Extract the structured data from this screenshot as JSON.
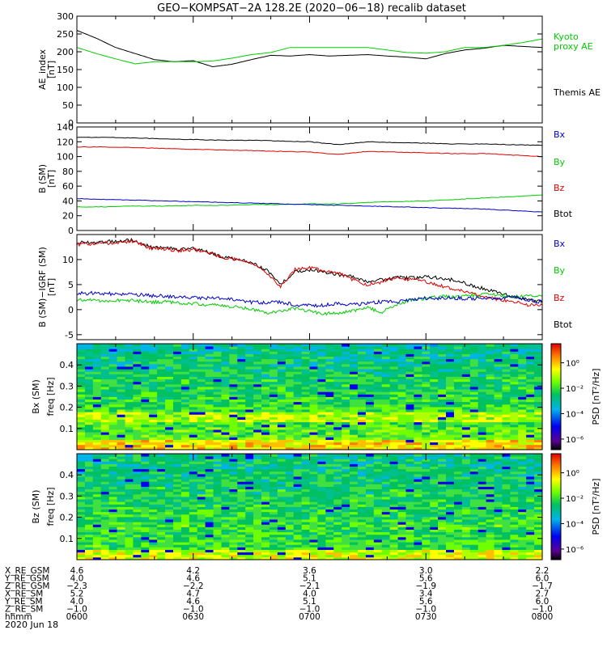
{
  "title": "GEO−KOMPSAT−2A 128.2E (2020−06−18) recalib dataset",
  "x_ticks_time": [
    "0600",
    "0630",
    "0700",
    "0730",
    "0800"
  ],
  "date_label": "2020 Jun 18",
  "colors": {
    "black": "#000000",
    "red": "#e00000",
    "green": "#00cc00",
    "blue": "#0000cc"
  },
  "chart_data": [
    {
      "type": "line",
      "panel": "ae",
      "ylabel": "AE_index",
      "yunit": "[nT]",
      "ylim": [
        0,
        300
      ],
      "yticks": [
        "0",
        "50",
        "100",
        "150",
        "200",
        "250",
        "300"
      ],
      "x": [
        "06:00",
        "06:05",
        "06:10",
        "06:15",
        "06:20",
        "06:25",
        "06:30",
        "06:35",
        "06:40",
        "06:45",
        "06:50",
        "06:55",
        "07:00",
        "07:05",
        "07:10",
        "07:15",
        "07:20",
        "07:25",
        "07:30",
        "07:35",
        "07:40",
        "07:45",
        "07:50",
        "07:55",
        "08:00"
      ],
      "series": [
        {
          "name": "Themis AE",
          "color": "#000000",
          "values": [
            260,
            238,
            212,
            195,
            178,
            172,
            175,
            158,
            165,
            178,
            190,
            188,
            192,
            188,
            190,
            192,
            188,
            185,
            180,
            195,
            205,
            210,
            218,
            215,
            212
          ]
        },
        {
          "name": "Kyoto proxy AE",
          "color": "#00cc00",
          "values": [
            212,
            195,
            180,
            166,
            172,
            172,
            172,
            174,
            182,
            192,
            198,
            212,
            212,
            212,
            212,
            212,
            205,
            198,
            196,
            200,
            212,
            212,
            218,
            226,
            236
          ]
        }
      ],
      "legend": [
        "Kyoto",
        "proxy AE",
        "Themis AE"
      ]
    },
    {
      "type": "line",
      "panel": "b_sm",
      "ylabel": "B (SM)",
      "yunit": "[nT]",
      "ylim": [
        0,
        140
      ],
      "yticks": [
        "0",
        "20",
        "40",
        "60",
        "80",
        "100",
        "120",
        "140"
      ],
      "series": [
        {
          "name": "Btot",
          "color": "#000000",
          "values": [
            126,
            126,
            125,
            124,
            123,
            122,
            122,
            121,
            120,
            116,
            120,
            119,
            118,
            117,
            117,
            116,
            115
          ]
        },
        {
          "name": "Bz",
          "color": "#e00000",
          "values": [
            113,
            113,
            112,
            111,
            110,
            109,
            108,
            107,
            106,
            103,
            107,
            106,
            105,
            104,
            104,
            102,
            100
          ]
        },
        {
          "name": "By",
          "color": "#00cc00",
          "values": [
            32,
            32,
            33,
            33,
            34,
            34,
            35,
            35,
            36,
            36,
            38,
            39,
            40,
            42,
            44,
            46,
            48
          ]
        },
        {
          "name": "Bx",
          "color": "#0000cc",
          "values": [
            43,
            42,
            41,
            40,
            39,
            38,
            37,
            36,
            35,
            34,
            33,
            32,
            31,
            30,
            29,
            27,
            25
          ]
        }
      ],
      "legend": [
        "Bx",
        "By",
        "Bz",
        "Btot"
      ]
    },
    {
      "type": "line",
      "panel": "db_sm",
      "ylabel": "B (SM)−IGRF (SM)",
      "yunit": "[nT]",
      "ylim": [
        -6,
        15
      ],
      "yticks": [
        "-5",
        "0",
        "5",
        "10"
      ],
      "series": [
        {
          "name": "Btot",
          "color": "#000000",
          "values": [
            13.3,
            13.5,
            13.6,
            13.8,
            13.9,
            12.5,
            12.3,
            12.0,
            12.2,
            11.5,
            10.5,
            10.0,
            9.5,
            8.0,
            5.0,
            7.5,
            8.0,
            7.5,
            7.0,
            6.5,
            5.5,
            6.0,
            6.5,
            6.3,
            6.5,
            6.4,
            5.8,
            5.0,
            4.2,
            3.4,
            2.6,
            2.0,
            1.6
          ]
        },
        {
          "name": "Bz",
          "color": "#e00000",
          "values": [
            13.0,
            13.2,
            13.3,
            13.5,
            13.7,
            12.3,
            12.1,
            11.8,
            12.0,
            11.3,
            10.5,
            10.0,
            9.3,
            7.6,
            4.6,
            8.0,
            8.3,
            7.8,
            7.3,
            6.0,
            5.0,
            5.6,
            6.2,
            6.0,
            5.6,
            4.8,
            4.0,
            3.4,
            2.6,
            2.0,
            1.6,
            1.0,
            0.9
          ]
        },
        {
          "name": "By",
          "color": "#00cc00",
          "values": [
            1.8,
            2.0,
            1.7,
            1.9,
            1.8,
            1.5,
            1.6,
            1.3,
            1.2,
            1.0,
            0.8,
            0.5,
            0.2,
            -0.6,
            -0.3,
            0.3,
            -0.3,
            -0.8,
            -0.7,
            -0.2,
            0.3,
            -0.5,
            1.0,
            2.0,
            2.2,
            2.6,
            2.5,
            2.8,
            3.0,
            2.9,
            2.6,
            2.7,
            2.8
          ]
        },
        {
          "name": "Bx",
          "color": "#0000cc",
          "values": [
            3.2,
            3.3,
            3.2,
            3.0,
            3.0,
            2.8,
            2.7,
            2.5,
            2.4,
            2.3,
            2.3,
            1.8,
            1.5,
            1.4,
            1.5,
            1.0,
            0.8,
            0.9,
            1.2,
            1.0,
            1.3,
            1.6,
            1.5,
            2.0,
            2.3,
            2.2,
            2.3,
            2.2,
            2.3,
            2.2,
            2.5,
            2.0,
            1.5
          ]
        }
      ],
      "legend": [
        "Bx",
        "By",
        "Bz",
        "Btot"
      ]
    },
    {
      "type": "heatmap",
      "panel": "bx_psd",
      "ylabel": "Bx (SM)",
      "ylabel2": "freq",
      "yunit": "[Hz]",
      "ylim": [
        0,
        0.5
      ],
      "yticks": [
        "0.1",
        "0.2",
        "0.3",
        "0.4"
      ],
      "colorbar": {
        "label": "PSD [nT²/Hz]",
        "ticks": [
          "10⁰",
          "10⁻²",
          "10⁻⁴",
          "10⁻⁶"
        ]
      }
    },
    {
      "type": "heatmap",
      "panel": "bz_psd",
      "ylabel": "Bz (SM)",
      "ylabel2": "freq",
      "yunit": "[Hz]",
      "ylim": [
        0,
        0.5
      ],
      "yticks": [
        "0.1",
        "0.2",
        "0.3",
        "0.4"
      ],
      "colorbar": {
        "label": "PSD [nT²/Hz]",
        "ticks": [
          "10⁰",
          "10⁻²",
          "10⁻⁴",
          "10⁻⁶"
        ]
      }
    }
  ],
  "ephemeris": [
    {
      "label": "X_RE_GSM",
      "values": [
        "4.6",
        "4.2",
        "3.6",
        "3.0",
        "2.2"
      ]
    },
    {
      "label": "Y_RE_GSM",
      "values": [
        "4.0",
        "4.6",
        "5.1",
        "5.6",
        "6.0"
      ]
    },
    {
      "label": "Z_RE_GSM",
      "values": [
        "−2.3",
        "−2.2",
        "−2.1",
        "−1.9",
        "−1.7"
      ]
    },
    {
      "label": "X_RE_SM",
      "values": [
        "5.2",
        "4.7",
        "4.0",
        "3.4",
        "2.7"
      ]
    },
    {
      "label": "Y_RE_SM",
      "values": [
        "4.0",
        "4.6",
        "5.1",
        "5.6",
        "6.0"
      ]
    },
    {
      "label": "Z_RE_SM",
      "values": [
        "−1.0",
        "−1.0",
        "−1.0",
        "−1.0",
        "−1.0"
      ]
    },
    {
      "label": "hhmm",
      "values": [
        "0600",
        "0630",
        "0700",
        "0730",
        "0800"
      ]
    }
  ]
}
